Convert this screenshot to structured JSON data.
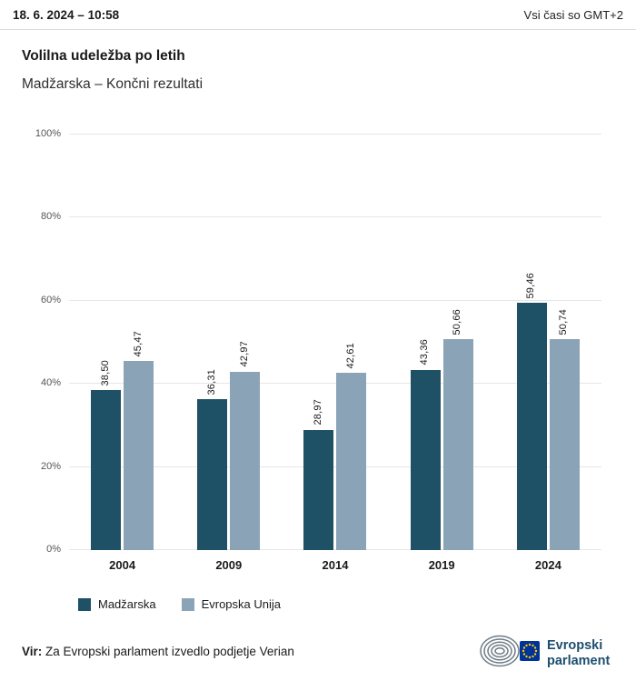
{
  "header": {
    "datetime": "18. 6. 2024 – 10:58",
    "timezone_note": "Vsi časi so GMT+2"
  },
  "title": "Volilna udeležba po letih",
  "subtitle": "Madžarska – Končni rezultati",
  "chart_data": {
    "type": "bar",
    "title": "Volilna udeležba po letih",
    "subtitle": "Madžarska – Končni rezultati",
    "categories": [
      "2004",
      "2009",
      "2014",
      "2019",
      "2024"
    ],
    "series": [
      {
        "name": "Madžarska",
        "color": "#1f5166",
        "values": [
          38.5,
          36.31,
          28.97,
          43.36,
          59.46
        ],
        "labels": [
          "38,50",
          "36,31",
          "28,97",
          "43,36",
          "59,46"
        ]
      },
      {
        "name": "Evropska Unija",
        "color": "#8ba3b6",
        "values": [
          45.47,
          42.97,
          42.61,
          50.66,
          50.74
        ],
        "labels": [
          "45,47",
          "42,97",
          "42,61",
          "50,66",
          "50,74"
        ]
      }
    ],
    "ylim": [
      0,
      100
    ],
    "yticks": [
      0,
      20,
      40,
      60,
      80,
      100
    ],
    "ytick_labels": [
      "0%",
      "20%",
      "40%",
      "60%",
      "80%",
      "100%"
    ],
    "grid": true,
    "legend_position": "bottom-left"
  },
  "footer": {
    "source_label": "Vir:",
    "source_text": " Za Evropski parlament izvedlo podjetje Verian"
  },
  "logo": {
    "line1": "Evropski",
    "line2": "parlament",
    "text_color": "#1d4e6e",
    "flag_blue": "#003399",
    "star_yellow": "#ffcc00"
  }
}
